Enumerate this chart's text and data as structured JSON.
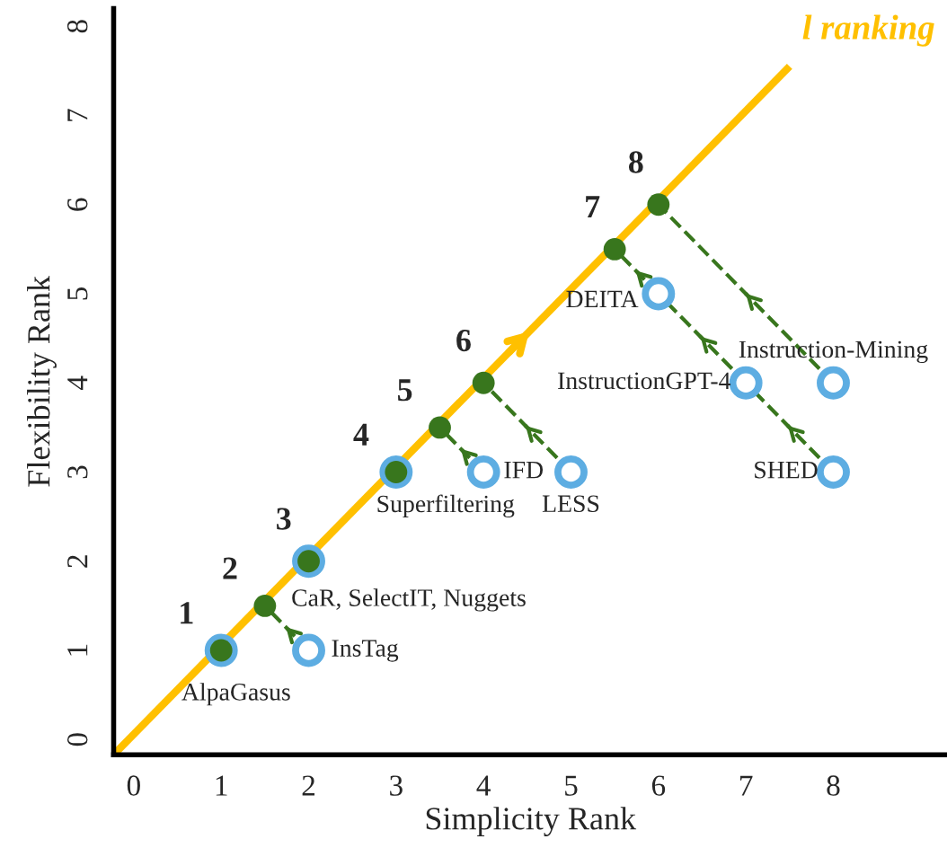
{
  "chart_data": {
    "type": "scatter",
    "xlabel": "Simplicity Rank",
    "ylabel": "Flexibility Rank",
    "xlim": [
      -0.23,
      9.3
    ],
    "ylim": [
      -0.17,
      8.2
    ],
    "xticks": [
      0,
      1,
      2,
      3,
      4,
      5,
      6,
      7,
      8
    ],
    "yticks": [
      0,
      1,
      2,
      3,
      4,
      5,
      6,
      7,
      8
    ],
    "grid": false,
    "legend": false,
    "series": [
      {
        "type": "line",
        "color": "#ffc000",
        "line_style": "solid",
        "marker": "none",
        "x": [
          -0.23,
          7.5
        ],
        "values": [
          -0.17,
          7.55
        ]
      },
      {
        "type": "line",
        "color": "#38761d",
        "line_style": "dashed",
        "marker": "none",
        "x": [
          2,
          1.5
        ],
        "values": [
          1,
          1.5
        ]
      },
      {
        "type": "line",
        "color": "#38761d",
        "line_style": "dashed",
        "marker": "none",
        "x": [
          4,
          3.5
        ],
        "values": [
          3,
          3.5
        ]
      },
      {
        "type": "line",
        "color": "#38761d",
        "line_style": "dashed",
        "marker": "none",
        "x": [
          5,
          4
        ],
        "values": [
          3,
          4
        ]
      },
      {
        "type": "line",
        "color": "#38761d",
        "line_style": "dashed",
        "marker": "none",
        "x": [
          6,
          5.5
        ],
        "values": [
          5,
          5.5
        ]
      },
      {
        "type": "line",
        "color": "#38761d",
        "line_style": "dashed",
        "marker": "none",
        "x": [
          7,
          6
        ],
        "values": [
          4,
          5
        ]
      },
      {
        "type": "line",
        "color": "#38761d",
        "line_style": "dashed",
        "marker": "none",
        "x": [
          8,
          7
        ],
        "values": [
          3,
          4
        ]
      },
      {
        "type": "line",
        "color": "#38761d",
        "line_style": "dashed",
        "marker": "none",
        "x": [
          8,
          6
        ],
        "values": [
          4,
          6
        ]
      },
      {
        "color": "#5dade2",
        "marker": "circle",
        "x": [
          1,
          2,
          2,
          3,
          4,
          5,
          6,
          7,
          8,
          8
        ],
        "values": [
          1,
          1,
          2,
          3,
          3,
          3,
          5,
          4,
          4,
          3
        ]
      },
      {
        "color": "#38761d",
        "marker": "circle",
        "x": [
          1,
          1.5,
          2,
          3,
          3.5,
          4,
          5.5,
          6
        ],
        "values": [
          1,
          1.5,
          2,
          3,
          3.5,
          4,
          5.5,
          6
        ]
      }
    ],
    "annotations": [
      {
        "text": "1",
        "x": 1,
        "y": 1
      },
      {
        "text": "2",
        "x": 1.5,
        "y": 1.5
      },
      {
        "text": "3",
        "x": 2,
        "y": 2
      },
      {
        "text": "4",
        "x": 3,
        "y": 3
      },
      {
        "text": "5",
        "x": 3.5,
        "y": 3.5
      },
      {
        "text": "6",
        "x": 4,
        "y": 4
      },
      {
        "text": "7",
        "x": 5.5,
        "y": 5.5
      },
      {
        "text": "8",
        "x": 6,
        "y": 6
      },
      {
        "text": "AlpaGasus",
        "x": 1,
        "y": 1
      },
      {
        "text": "InsTag",
        "x": 2,
        "y": 1
      },
      {
        "text": "CaR, SelectIT, Nuggets",
        "x": 2,
        "y": 2
      },
      {
        "text": "Superfiltering",
        "x": 3,
        "y": 3
      },
      {
        "text": "IFD",
        "x": 4,
        "y": 3
      },
      {
        "text": "LESS",
        "x": 5,
        "y": 3
      },
      {
        "text": "DEITA",
        "x": 6,
        "y": 5
      },
      {
        "text": "InstructionGPT-4",
        "x": 7,
        "y": 4
      },
      {
        "text": "Instruction-Mining",
        "x": 8,
        "y": 4
      },
      {
        "text": "SHED",
        "x": 8,
        "y": 3
      },
      {
        "text": "l ranking",
        "x": 7.5,
        "y": 7.55
      }
    ]
  }
}
